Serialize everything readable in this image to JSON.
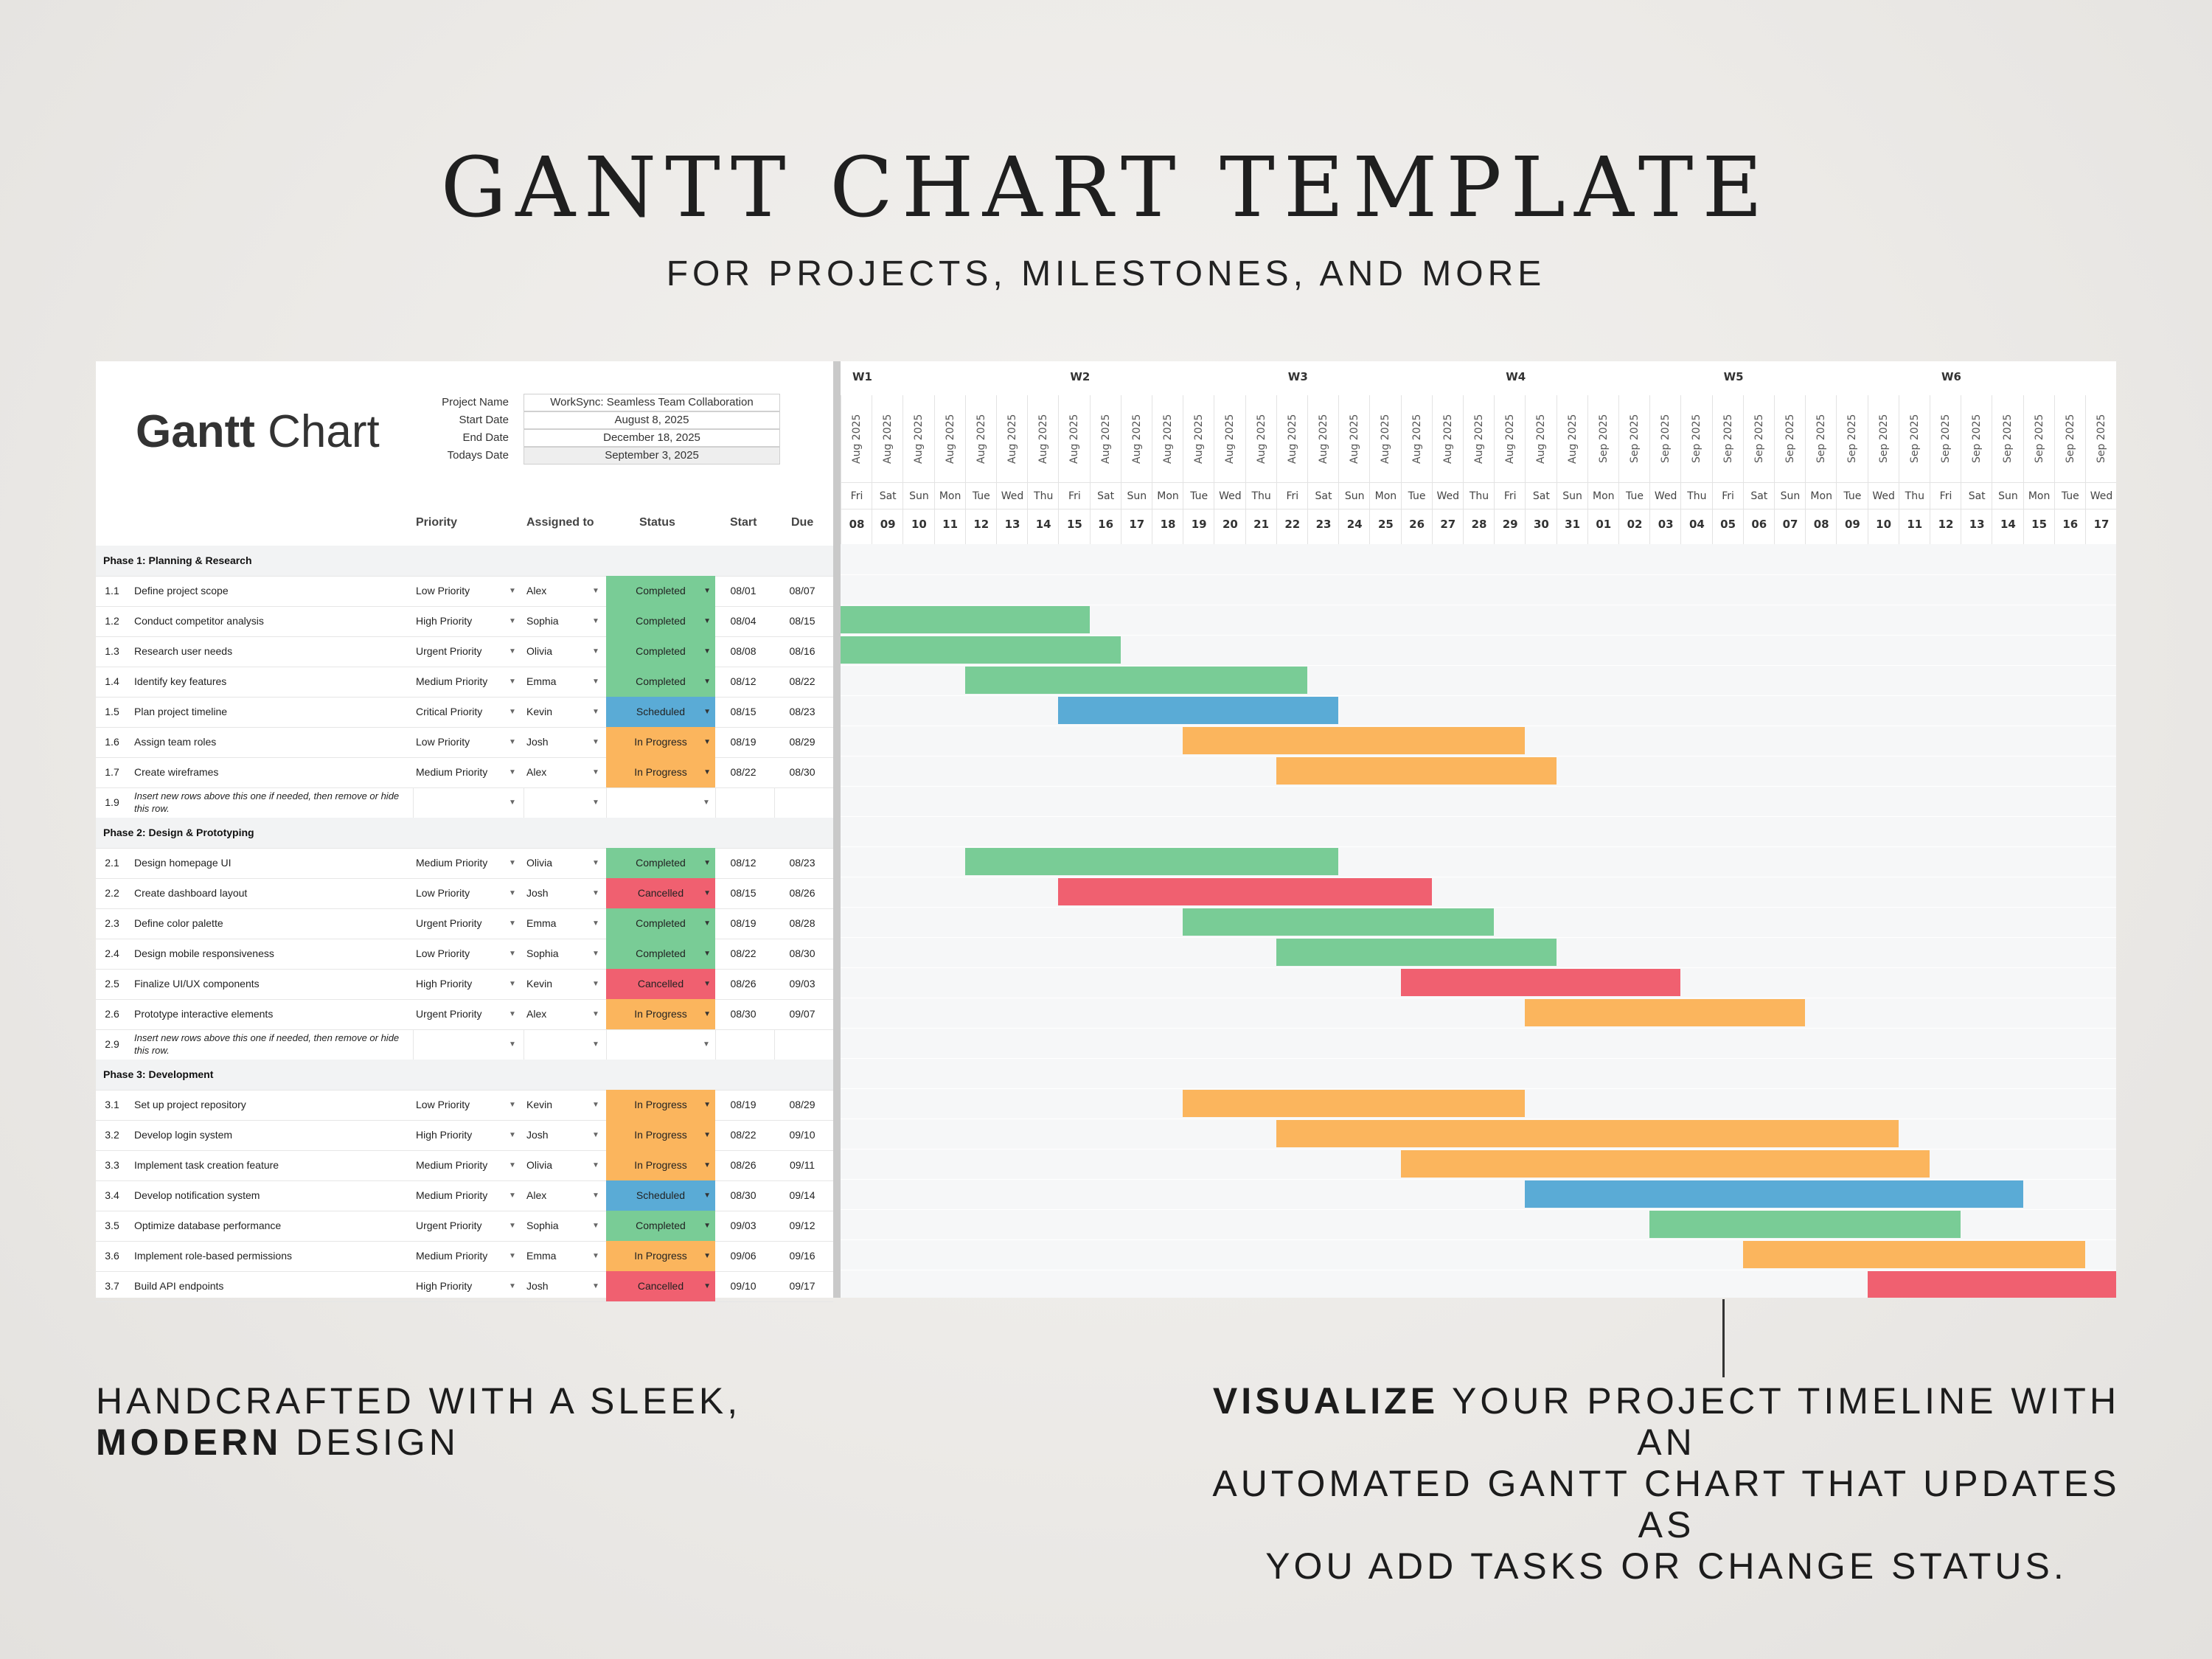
{
  "hero": {
    "title": "GANTT CHART TEMPLATE",
    "subtitle": "FOR PROJECTS, MILESTONES, AND MORE"
  },
  "blurbs": {
    "left_line1": "HANDCRAFTED WITH A SLEEK,",
    "left_bold": "MODERN",
    "left_rest": " DESIGN",
    "right_bold": "VISUALIZE",
    "right_line1_rest": " YOUR PROJECT TIMELINE WITH AN",
    "right_line2": "AUTOMATED GANTT CHART THAT UPDATES AS",
    "right_line3": "YOU ADD TASKS OR CHANGE STATUS."
  },
  "sheet": {
    "title_bold": "Gantt",
    "title_rest": " Chart",
    "meta": [
      {
        "label": "Project Name",
        "value": "WorkSync: Seamless Team Collaboration"
      },
      {
        "label": "Start Date",
        "value": "August 8, 2025"
      },
      {
        "label": "End Date",
        "value": "December 18, 2025"
      },
      {
        "label": "Todays Date",
        "value": "September 3, 2025"
      }
    ],
    "columns": {
      "priority": "Priority",
      "assigned": "Assigned to",
      "status": "Status",
      "start": "Start",
      "due": "Due"
    },
    "status_colors": {
      "Completed": "#79cc96",
      "Scheduled": "#5aabd6",
      "In Progress": "#fbb55d",
      "Cancelled": "#f06070"
    },
    "rows": [
      {
        "type": "phase",
        "label": "Phase 1: Planning & Research"
      },
      {
        "type": "task",
        "id": "1.1",
        "task": "Define project scope",
        "priority": "Low Priority",
        "assigned": "Alex",
        "status": "Completed",
        "start": "08/01",
        "due": "08/07"
      },
      {
        "type": "task",
        "id": "1.2",
        "task": "Conduct competitor analysis",
        "priority": "High Priority",
        "assigned": "Sophia",
        "status": "Completed",
        "start": "08/04",
        "due": "08/15"
      },
      {
        "type": "task",
        "id": "1.3",
        "task": "Research user needs",
        "priority": "Urgent Priority",
        "assigned": "Olivia",
        "status": "Completed",
        "start": "08/08",
        "due": "08/16"
      },
      {
        "type": "task",
        "id": "1.4",
        "task": "Identify key features",
        "priority": "Medium Priority",
        "assigned": "Emma",
        "status": "Completed",
        "start": "08/12",
        "due": "08/22"
      },
      {
        "type": "task",
        "id": "1.5",
        "task": "Plan project timeline",
        "priority": "Critical Priority",
        "assigned": "Kevin",
        "status": "Scheduled",
        "start": "08/15",
        "due": "08/23"
      },
      {
        "type": "task",
        "id": "1.6",
        "task": "Assign team roles",
        "priority": "Low Priority",
        "assigned": "Josh",
        "status": "In Progress",
        "start": "08/19",
        "due": "08/29"
      },
      {
        "type": "task",
        "id": "1.7",
        "task": "Create wireframes",
        "priority": "Medium Priority",
        "assigned": "Alex",
        "status": "In Progress",
        "start": "08/22",
        "due": "08/30"
      },
      {
        "type": "note",
        "id": "1.9",
        "task": "Insert new rows above this one if needed, then remove or hide this row."
      },
      {
        "type": "phase",
        "label": "Phase 2: Design & Prototyping"
      },
      {
        "type": "task",
        "id": "2.1",
        "task": "Design homepage UI",
        "priority": "Medium Priority",
        "assigned": "Olivia",
        "status": "Completed",
        "start": "08/12",
        "due": "08/23"
      },
      {
        "type": "task",
        "id": "2.2",
        "task": "Create dashboard layout",
        "priority": "Low Priority",
        "assigned": "Josh",
        "status": "Cancelled",
        "start": "08/15",
        "due": "08/26"
      },
      {
        "type": "task",
        "id": "2.3",
        "task": "Define color palette",
        "priority": "Urgent Priority",
        "assigned": "Emma",
        "status": "Completed",
        "start": "08/19",
        "due": "08/28"
      },
      {
        "type": "task",
        "id": "2.4",
        "task": "Design mobile responsiveness",
        "priority": "Low Priority",
        "assigned": "Sophia",
        "status": "Completed",
        "start": "08/22",
        "due": "08/30"
      },
      {
        "type": "task",
        "id": "2.5",
        "task": "Finalize UI/UX components",
        "priority": "High Priority",
        "assigned": "Kevin",
        "status": "Cancelled",
        "start": "08/26",
        "due": "09/03"
      },
      {
        "type": "task",
        "id": "2.6",
        "task": "Prototype interactive elements",
        "priority": "Urgent Priority",
        "assigned": "Alex",
        "status": "In Progress",
        "start": "08/30",
        "due": "09/07"
      },
      {
        "type": "note",
        "id": "2.9",
        "task": "Insert new rows above this one if needed, then remove or hide this row."
      },
      {
        "type": "phase",
        "label": "Phase 3: Development"
      },
      {
        "type": "task",
        "id": "3.1",
        "task": "Set up project repository",
        "priority": "Low Priority",
        "assigned": "Kevin",
        "status": "In Progress",
        "start": "08/19",
        "due": "08/29"
      },
      {
        "type": "task",
        "id": "3.2",
        "task": "Develop login system",
        "priority": "High Priority",
        "assigned": "Josh",
        "status": "In Progress",
        "start": "08/22",
        "due": "09/10"
      },
      {
        "type": "task",
        "id": "3.3",
        "task": "Implement task creation feature",
        "priority": "Medium Priority",
        "assigned": "Olivia",
        "status": "In Progress",
        "start": "08/26",
        "due": "09/11"
      },
      {
        "type": "task",
        "id": "3.4",
        "task": "Develop notification system",
        "priority": "Medium Priority",
        "assigned": "Alex",
        "status": "Scheduled",
        "start": "08/30",
        "due": "09/14"
      },
      {
        "type": "task",
        "id": "3.5",
        "task": "Optimize database performance",
        "priority": "Urgent Priority",
        "assigned": "Sophia",
        "status": "Completed",
        "start": "09/03",
        "due": "09/12"
      },
      {
        "type": "task",
        "id": "3.6",
        "task": "Implement role-based permissions",
        "priority": "Medium Priority",
        "assigned": "Emma",
        "status": "In Progress",
        "start": "09/06",
        "due": "09/16"
      },
      {
        "type": "task",
        "id": "3.7",
        "task": "Build API endpoints",
        "priority": "High Priority",
        "assigned": "Josh",
        "status": "Cancelled",
        "start": "09/10",
        "due": "09/17"
      }
    ]
  },
  "timeline": {
    "weeks": [
      "W1",
      "W2",
      "W3",
      "W4",
      "W5",
      "W6"
    ],
    "days": [
      {
        "month": "Aug 2025",
        "dow": "Fri",
        "day": "08"
      },
      {
        "month": "Aug 2025",
        "dow": "Sat",
        "day": "09"
      },
      {
        "month": "Aug 2025",
        "dow": "Sun",
        "day": "10"
      },
      {
        "month": "Aug 2025",
        "dow": "Mon",
        "day": "11"
      },
      {
        "month": "Aug 2025",
        "dow": "Tue",
        "day": "12"
      },
      {
        "month": "Aug 2025",
        "dow": "Wed",
        "day": "13"
      },
      {
        "month": "Aug 2025",
        "dow": "Thu",
        "day": "14"
      },
      {
        "month": "Aug 2025",
        "dow": "Fri",
        "day": "15"
      },
      {
        "month": "Aug 2025",
        "dow": "Sat",
        "day": "16"
      },
      {
        "month": "Aug 2025",
        "dow": "Sun",
        "day": "17"
      },
      {
        "month": "Aug 2025",
        "dow": "Mon",
        "day": "18"
      },
      {
        "month": "Aug 2025",
        "dow": "Tue",
        "day": "19"
      },
      {
        "month": "Aug 2025",
        "dow": "Wed",
        "day": "20"
      },
      {
        "month": "Aug 2025",
        "dow": "Thu",
        "day": "21"
      },
      {
        "month": "Aug 2025",
        "dow": "Fri",
        "day": "22"
      },
      {
        "month": "Aug 2025",
        "dow": "Sat",
        "day": "23"
      },
      {
        "month": "Aug 2025",
        "dow": "Sun",
        "day": "24"
      },
      {
        "month": "Aug 2025",
        "dow": "Mon",
        "day": "25"
      },
      {
        "month": "Aug 2025",
        "dow": "Tue",
        "day": "26"
      },
      {
        "month": "Aug 2025",
        "dow": "Wed",
        "day": "27"
      },
      {
        "month": "Aug 2025",
        "dow": "Thu",
        "day": "28"
      },
      {
        "month": "Aug 2025",
        "dow": "Fri",
        "day": "29"
      },
      {
        "month": "Aug 2025",
        "dow": "Sat",
        "day": "30"
      },
      {
        "month": "Aug 2025",
        "dow": "Sun",
        "day": "31"
      },
      {
        "month": "Sep 2025",
        "dow": "Mon",
        "day": "01"
      },
      {
        "month": "Sep 2025",
        "dow": "Tue",
        "day": "02"
      },
      {
        "month": "Sep 2025",
        "dow": "Wed",
        "day": "03"
      },
      {
        "month": "Sep 2025",
        "dow": "Thu",
        "day": "04"
      },
      {
        "month": "Sep 2025",
        "dow": "Fri",
        "day": "05"
      },
      {
        "month": "Sep 2025",
        "dow": "Sat",
        "day": "06"
      },
      {
        "month": "Sep 2025",
        "dow": "Sun",
        "day": "07"
      },
      {
        "month": "Sep 2025",
        "dow": "Mon",
        "day": "08"
      },
      {
        "month": "Sep 2025",
        "dow": "Tue",
        "day": "09"
      },
      {
        "month": "Sep 2025",
        "dow": "Wed",
        "day": "10"
      },
      {
        "month": "Sep 2025",
        "dow": "Thu",
        "day": "11"
      },
      {
        "month": "Sep 2025",
        "dow": "Fri",
        "day": "12"
      },
      {
        "month": "Sep 2025",
        "dow": "Sat",
        "day": "13"
      },
      {
        "month": "Sep 2025",
        "dow": "Sun",
        "day": "14"
      },
      {
        "month": "Sep 2025",
        "dow": "Mon",
        "day": "15"
      },
      {
        "month": "Sep 2025",
        "dow": "Tue",
        "day": "16"
      },
      {
        "month": "Sep 2025",
        "dow": "Wed",
        "day": "17"
      }
    ]
  }
}
